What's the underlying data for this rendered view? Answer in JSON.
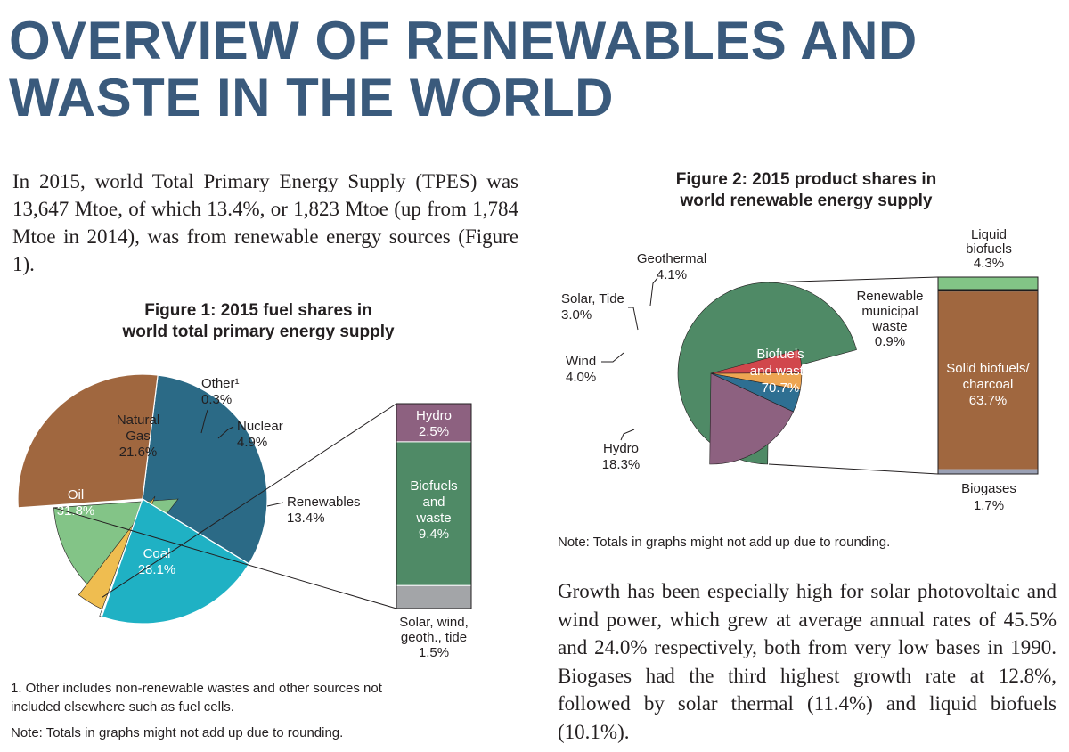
{
  "title": {
    "line1": "OVERVIEW OF RENEWABLES AND",
    "line2": "WASTE IN THE WORLD"
  },
  "intro_text": "In 2015, world Total Primary Energy Supply (TPES) was 13,647 Mtoe, of which 13.4%, or 1,823 Mtoe (up from 1,784 Mtoe in 2014), was from renewable energy sources (Figure 1).",
  "growth_text": "Growth has been especially high for solar photovoltaic and wind power, which grew at average annual rates of 45.5% and 24.0% respectively, both from very low bases in 1990. Biogases had the third highest growth rate at 12.8%, followed by solar thermal (11.4%) and liquid biofuels (10.1%).",
  "figure1": {
    "title_line1": "Figure 1: 2015 fuel shares in",
    "title_line2": "world total primary energy supply",
    "footnote_line1": "1. Other includes non-renewable wastes and other sources not",
    "footnote_line2": "included elsewhere such as fuel cells.",
    "note": "Note: Totals in graphs might not add up due to rounding."
  },
  "figure2": {
    "title_line1": "Figure 2: 2015 product shares in",
    "title_line2": "world renewable energy supply",
    "note": "Note: Totals in graphs might not add up due to rounding."
  },
  "colors": {
    "title": "#3a5a7c",
    "oil": "#2b6a86",
    "natural_gas": "#1fb1c4",
    "coal": "#a0673f",
    "nuclear": "#efbd50",
    "renewables": "#83c487",
    "hydro": "#8d6180",
    "biofuels_waste": "#4f8a66",
    "solar_wind": "#a3a5a8",
    "geothermal": "#d1474c",
    "solar_tide": "#eda552",
    "wind": "#2e6f92",
    "liquid_biofuels": "#82c486",
    "municipal_waste": "#1d1d1d",
    "solid_biofuels": "#a0673f",
    "biogases": "#9aa0b4"
  },
  "chart_data": [
    {
      "type": "pie",
      "title": "Figure 1: 2015 fuel shares in world total primary energy supply",
      "unit": "%",
      "slices": [
        {
          "key": "oil",
          "label": "Oil",
          "value": 31.8,
          "display": "31.8%"
        },
        {
          "key": "coal",
          "label": "Coal",
          "value": 28.1,
          "display": "28.1%"
        },
        {
          "key": "renewables",
          "label": "Renewables",
          "value": 13.4,
          "display": "13.4%"
        },
        {
          "key": "nuclear",
          "label": "Nuclear",
          "value": 4.9,
          "display": "4.9%"
        },
        {
          "key": "other",
          "label": "Other¹",
          "value": 0.3,
          "display": "0.3%"
        },
        {
          "key": "natural_gas",
          "label": "Natural Gas",
          "value": 21.6,
          "display": "21.6%"
        }
      ],
      "breakdown": {
        "of": "Renewables",
        "type": "stacked-bar",
        "segments": [
          {
            "key": "hydro",
            "label": "Hydro",
            "value": 2.5,
            "display": "2.5%"
          },
          {
            "key": "biofuels_waste",
            "label": "Biofuels and waste",
            "value": 9.4,
            "display": "9.4%"
          },
          {
            "key": "solar_wind",
            "label": "Solar, wind, geoth., tide",
            "value": 1.5,
            "display": "1.5%"
          }
        ]
      }
    },
    {
      "type": "pie",
      "title": "Figure 2: 2015 product shares in world renewable energy supply",
      "unit": "%",
      "slices": [
        {
          "key": "biofuels_waste",
          "label": "Biofuels and waste",
          "value": 70.7,
          "display": "70.7%"
        },
        {
          "key": "hydro",
          "label": "Hydro",
          "value": 18.3,
          "display": "18.3%"
        },
        {
          "key": "wind",
          "label": "Wind",
          "value": 4.0,
          "display": "4.0%"
        },
        {
          "key": "solar_tide",
          "label": "Solar, Tide",
          "value": 3.0,
          "display": "3.0%"
        },
        {
          "key": "geothermal",
          "label": "Geothermal",
          "value": 4.1,
          "display": "4.1%"
        }
      ],
      "breakdown": {
        "of": "Biofuels and waste",
        "type": "stacked-bar",
        "segments": [
          {
            "key": "liquid_biofuels",
            "label": "Liquid biofuels",
            "value": 4.3,
            "display": "4.3%"
          },
          {
            "key": "municipal_waste",
            "label": "Renewable municipal waste",
            "value": 0.9,
            "display": "0.9%"
          },
          {
            "key": "solid_biofuels",
            "label": "Solid biofuels/ charcoal",
            "value": 63.7,
            "display": "63.7%"
          },
          {
            "key": "biogases",
            "label": "Biogases",
            "value": 1.7,
            "display": "1.7%"
          }
        ]
      }
    }
  ]
}
